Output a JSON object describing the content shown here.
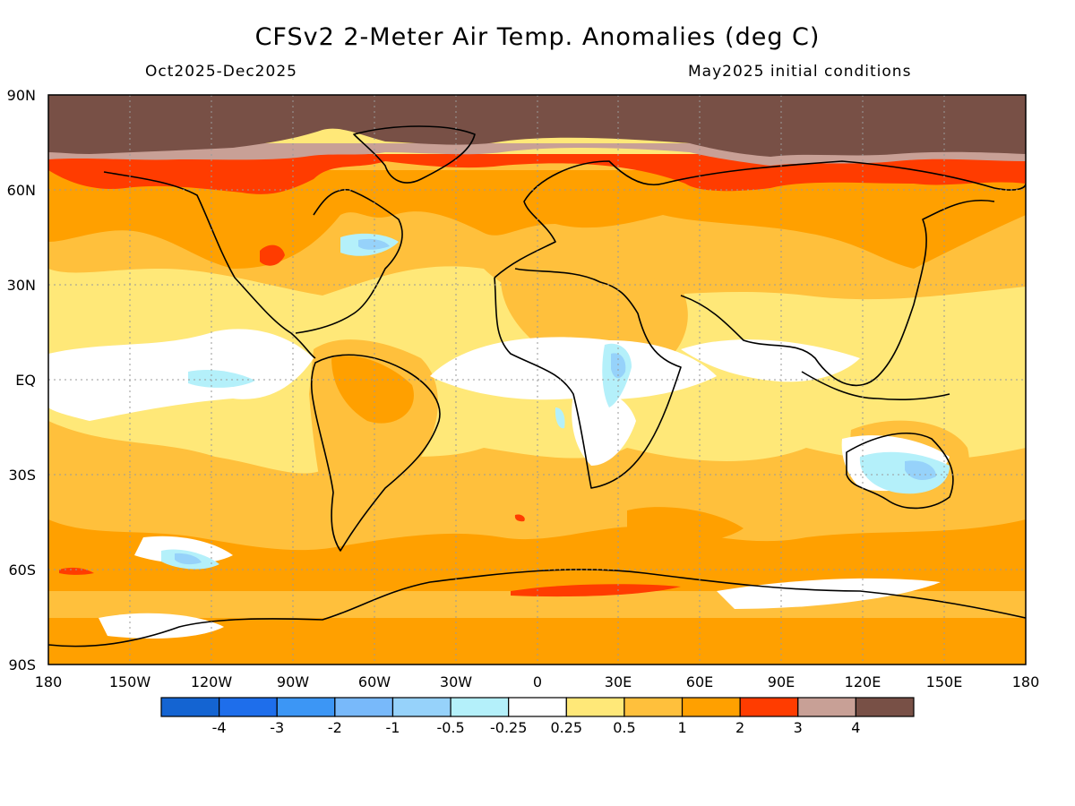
{
  "header": {
    "title": "CFSv2 2-Meter Air Temp. Anomalies (deg C)",
    "period": "Oct2025-Dec2025",
    "init": "May2025 initial conditions"
  },
  "axes": {
    "lat_labels": [
      "90N",
      "60N",
      "30N",
      "EQ",
      "30S",
      "60S",
      "90S"
    ],
    "lon_labels": [
      "180",
      "150W",
      "120W",
      "90W",
      "60W",
      "30W",
      "0",
      "30E",
      "60E",
      "90E",
      "120E",
      "150E",
      "180"
    ]
  },
  "colorbar": {
    "colors": [
      "#1464d2",
      "#1e6eeb",
      "#3c96f5",
      "#78b9fa",
      "#96d2fa",
      "#b4f0fa",
      "#ffffff",
      "#ffe878",
      "#ffc03c",
      "#ffa000",
      "#ff3c00",
      "#c8a096",
      "#785046"
    ],
    "labels": [
      "-4",
      "-3",
      "-2",
      "-1",
      "-0.5",
      "-0.25",
      "0.25",
      "0.5",
      "1",
      "2",
      "3",
      "4"
    ]
  },
  "legend_colors": {
    "land_outline": "#000000",
    "grid": "#9a9a9a"
  }
}
